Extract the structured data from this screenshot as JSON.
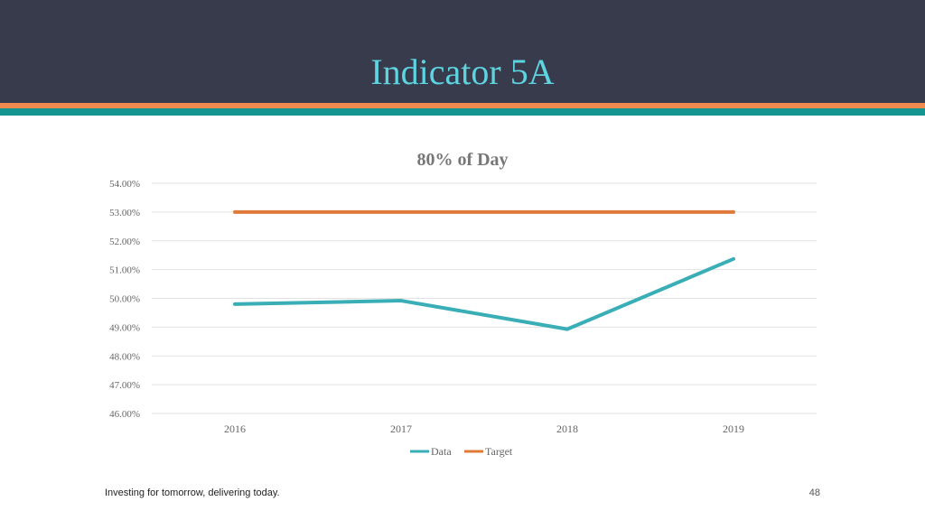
{
  "slide": {
    "title": "Indicator 5A",
    "footer": "Investing for tomorrow, delivering today.",
    "page_number": "48"
  },
  "colors": {
    "header_bg": "#383b4b",
    "title": "#5ed4e0",
    "stripe_orange": "#f08b4f",
    "stripe_teal": "#14958f",
    "data_series": "#3aaeb6",
    "target_series": "#e07a3a"
  },
  "chart_data": {
    "type": "line",
    "title": "80% of Day",
    "categories": [
      "2016",
      "2017",
      "2018",
      "2019"
    ],
    "series": [
      {
        "name": "Data",
        "values": [
          49.8,
          49.92,
          48.93,
          51.37
        ]
      },
      {
        "name": "Target",
        "values": [
          53.0,
          53.0,
          53.0,
          53.0
        ]
      }
    ],
    "y_ticks": [
      "54.00%",
      "53.00%",
      "52.00%",
      "51.00%",
      "50.00%",
      "49.00%",
      "48.00%",
      "47.00%",
      "46.00%"
    ],
    "ylim": [
      46,
      54
    ],
    "grid": true,
    "legend_position": "bottom"
  }
}
